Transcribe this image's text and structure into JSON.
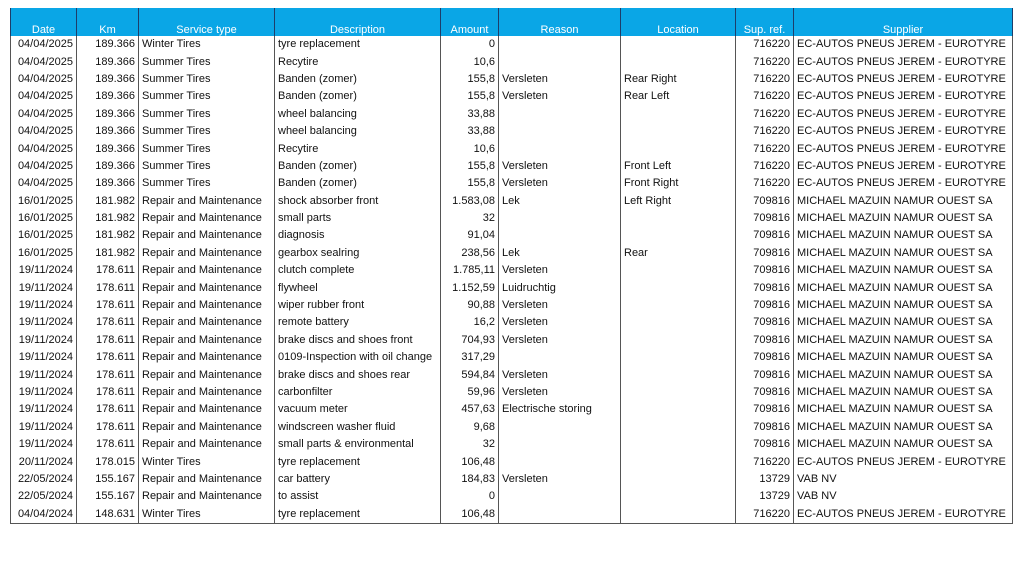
{
  "table": {
    "header": [
      "Date",
      "Km",
      "Service type",
      "Description",
      "Amount",
      "Reason",
      "Location",
      "Sup. ref.",
      "Supplier"
    ],
    "rows": [
      [
        "04/04/2025",
        "189.366",
        "Winter Tires",
        "tyre replacement",
        "0",
        null,
        null,
        "716220",
        "EC-AUTOS PNEUS JEREM - EUROTYRE"
      ],
      [
        "04/04/2025",
        "189.366",
        "Summer Tires",
        "Recytire",
        "10,6",
        null,
        null,
        "716220",
        "EC-AUTOS PNEUS JEREM - EUROTYRE"
      ],
      [
        "04/04/2025",
        "189.366",
        "Summer Tires",
        "Banden (zomer)",
        "155,8",
        "Versleten",
        "Rear Right",
        "716220",
        "EC-AUTOS PNEUS JEREM - EUROTYRE"
      ],
      [
        "04/04/2025",
        "189.366",
        "Summer Tires",
        "Banden (zomer)",
        "155,8",
        "Versleten",
        "Rear Left",
        "716220",
        "EC-AUTOS PNEUS JEREM - EUROTYRE"
      ],
      [
        "04/04/2025",
        "189.366",
        "Summer Tires",
        "wheel balancing",
        "33,88",
        null,
        null,
        "716220",
        "EC-AUTOS PNEUS JEREM - EUROTYRE"
      ],
      [
        "04/04/2025",
        "189.366",
        "Summer Tires",
        "wheel balancing",
        "33,88",
        null,
        null,
        "716220",
        "EC-AUTOS PNEUS JEREM - EUROTYRE"
      ],
      [
        "04/04/2025",
        "189.366",
        "Summer Tires",
        "Recytire",
        "10,6",
        null,
        null,
        "716220",
        "EC-AUTOS PNEUS JEREM - EUROTYRE"
      ],
      [
        "04/04/2025",
        "189.366",
        "Summer Tires",
        "Banden (zomer)",
        "155,8",
        "Versleten",
        "Front Left",
        "716220",
        "EC-AUTOS PNEUS JEREM - EUROTYRE"
      ],
      [
        "04/04/2025",
        "189.366",
        "Summer Tires",
        "Banden (zomer)",
        "155,8",
        "Versleten",
        "Front Right",
        "716220",
        "EC-AUTOS PNEUS JEREM - EUROTYRE"
      ],
      [
        "16/01/2025",
        "181.982",
        "Repair and Maintenance",
        "shock absorber front",
        "1.583,08",
        "Lek",
        "Left Right",
        "709816",
        "MICHAEL MAZUIN NAMUR OUEST SA"
      ],
      [
        "16/01/2025",
        "181.982",
        "Repair and Maintenance",
        "small parts",
        "32",
        null,
        null,
        "709816",
        "MICHAEL MAZUIN NAMUR OUEST SA"
      ],
      [
        "16/01/2025",
        "181.982",
        "Repair and Maintenance",
        "diagnosis",
        "91,04",
        null,
        null,
        "709816",
        "MICHAEL MAZUIN NAMUR OUEST SA"
      ],
      [
        "16/01/2025",
        "181.982",
        "Repair and Maintenance",
        "gearbox sealring",
        "238,56",
        "Lek",
        "Rear",
        "709816",
        "MICHAEL MAZUIN NAMUR OUEST SA"
      ],
      [
        "19/11/2024",
        "178.611",
        "Repair and Maintenance",
        "clutch complete",
        "1.785,11",
        "Versleten",
        null,
        "709816",
        "MICHAEL MAZUIN NAMUR OUEST SA"
      ],
      [
        "19/11/2024",
        "178.611",
        "Repair and Maintenance",
        "flywheel",
        "1.152,59",
        "Luidruchtig",
        null,
        "709816",
        "MICHAEL MAZUIN NAMUR OUEST SA"
      ],
      [
        "19/11/2024",
        "178.611",
        "Repair and Maintenance",
        "wiper rubber front",
        "90,88",
        "Versleten",
        null,
        "709816",
        "MICHAEL MAZUIN NAMUR OUEST SA"
      ],
      [
        "19/11/2024",
        "178.611",
        "Repair and Maintenance",
        "remote battery",
        "16,2",
        "Versleten",
        null,
        "709816",
        "MICHAEL MAZUIN NAMUR OUEST SA"
      ],
      [
        "19/11/2024",
        "178.611",
        "Repair and Maintenance",
        "brake discs and shoes front",
        "704,93",
        "Versleten",
        null,
        "709816",
        "MICHAEL MAZUIN NAMUR OUEST SA"
      ],
      [
        "19/11/2024",
        "178.611",
        "Repair and Maintenance",
        "0109-Inspection with oil change",
        "317,29",
        null,
        null,
        "709816",
        "MICHAEL MAZUIN NAMUR OUEST SA"
      ],
      [
        "19/11/2024",
        "178.611",
        "Repair and Maintenance",
        "brake discs and shoes rear",
        "594,84",
        "Versleten",
        null,
        "709816",
        "MICHAEL MAZUIN NAMUR OUEST SA"
      ],
      [
        "19/11/2024",
        "178.611",
        "Repair and Maintenance",
        "carbonfilter",
        "59,96",
        "Versleten",
        null,
        "709816",
        "MICHAEL MAZUIN NAMUR OUEST SA"
      ],
      [
        "19/11/2024",
        "178.611",
        "Repair and Maintenance",
        "vacuum meter",
        "457,63",
        "Electrische storing",
        null,
        "709816",
        "MICHAEL MAZUIN NAMUR OUEST SA"
      ],
      [
        "19/11/2024",
        "178.611",
        "Repair and Maintenance",
        "windscreen washer fluid",
        "9,68",
        null,
        null,
        "709816",
        "MICHAEL MAZUIN NAMUR OUEST SA"
      ],
      [
        "19/11/2024",
        "178.611",
        "Repair and Maintenance",
        "small parts & environmental",
        "32",
        null,
        null,
        "709816",
        "MICHAEL MAZUIN NAMUR OUEST SA"
      ],
      [
        "20/11/2024",
        "178.015",
        "Winter Tires",
        "tyre replacement",
        "106,48",
        null,
        null,
        "716220",
        "EC-AUTOS PNEUS JEREM - EUROTYRE"
      ],
      [
        "22/05/2024",
        "155.167",
        "Repair and Maintenance",
        "car battery",
        "184,83",
        "Versleten",
        null,
        "13729",
        "VAB NV"
      ],
      [
        "22/05/2024",
        "155.167",
        "Repair and Maintenance",
        "to assist",
        "0",
        null,
        null,
        "13729",
        "VAB NV"
      ],
      [
        "04/04/2024",
        "148.631",
        "Winter Tires",
        "tyre replacement",
        "106,48",
        null,
        null,
        "716220",
        "EC-AUTOS PNEUS JEREM - EUROTYRE"
      ]
    ]
  }
}
